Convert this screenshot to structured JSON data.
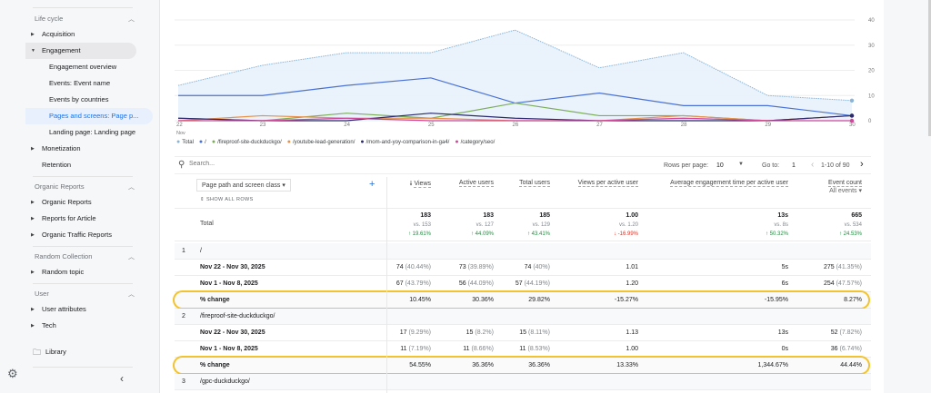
{
  "sidebar": {
    "sections": [
      {
        "title": "Life cycle"
      },
      {
        "title": "Organic Reports"
      },
      {
        "title": "Random Collection"
      },
      {
        "title": "User"
      }
    ],
    "items": [
      "Acquisition",
      "Engagement",
      "Engagement overview",
      "Events: Event name",
      "Events by countries",
      "Pages and screens: Page p...",
      "Landing page: Landing page",
      "Monetization",
      "Retention",
      "Organic Reports",
      "Reports for Article",
      "Organic Traffic Reports",
      "Random topic",
      "User attributes",
      "Tech"
    ],
    "library": "Library"
  },
  "chart_data": {
    "type": "line",
    "x": [
      "22",
      "23",
      "24",
      "25",
      "26",
      "27",
      "28",
      "29",
      "30"
    ],
    "x_sub_label": "Nov",
    "yticks": [
      "0",
      "10",
      "20",
      "30",
      "40"
    ],
    "ylim": [
      0,
      40
    ],
    "grid": true,
    "legend_position": "bottom",
    "series": [
      {
        "name": "Total",
        "color": "#8ab4d8",
        "values": [
          14,
          22,
          27,
          27,
          36,
          21,
          27,
          10,
          8
        ]
      },
      {
        "name": "/",
        "color": "#4a72d4",
        "values": [
          10,
          10,
          14,
          17,
          7,
          11,
          6,
          6,
          2
        ]
      },
      {
        "name": "/fireproof-site-duckduckgo/",
        "color": "#7cae5a",
        "values": [
          1,
          0,
          3,
          1,
          7,
          2,
          2,
          0,
          2
        ]
      },
      {
        "name": "/youtube-lead-generation/",
        "color": "#e8914a",
        "values": [
          0,
          2,
          1,
          1,
          0,
          0,
          2,
          0,
          2
        ]
      },
      {
        "name": "/mom-and-yoy-comparison-in-ga4/",
        "color": "#2b2a6e",
        "values": [
          1,
          0,
          0,
          3,
          1,
          0,
          0,
          0,
          2
        ]
      },
      {
        "name": "/category/seo/",
        "color": "#d0489a",
        "values": [
          0,
          0,
          1,
          0,
          0,
          0,
          1,
          0,
          0
        ]
      }
    ]
  },
  "toolbar": {
    "search_placeholder": "Search...",
    "rows_label": "Rows per page:",
    "rows_value": "10",
    "goto_label": "Go to:",
    "goto_value": "1",
    "range": "1-10 of 90"
  },
  "table": {
    "dimension": "Page path and screen class",
    "show_all": "SHOW ALL ROWS",
    "total_label": "Total",
    "event_filter": "All events",
    "columns": [
      "Views",
      "Active users",
      "Total users",
      "Views per active user",
      "Average engagement time per active user",
      "Event count"
    ],
    "totals": [
      {
        "v": "183",
        "vs": "vs. 153",
        "ch": "↑ 19.61%",
        "dir": "up"
      },
      {
        "v": "183",
        "vs": "vs. 127",
        "ch": "↑ 44.09%",
        "dir": "up"
      },
      {
        "v": "185",
        "vs": "vs. 129",
        "ch": "↑ 43.41%",
        "dir": "up"
      },
      {
        "v": "1.00",
        "vs": "vs. 1.20",
        "ch": "↓ -16.99%",
        "dir": "down"
      },
      {
        "v": "13s",
        "vs": "vs. 8s",
        "ch": "↑ 50.32%",
        "dir": "up"
      },
      {
        "v": "665",
        "vs": "vs. 534",
        "ch": "↑ 24.53%",
        "dir": "up"
      }
    ],
    "groups": [
      {
        "index": "1",
        "path": "/",
        "rows": [
          {
            "label": "Nov 22 - Nov 30, 2025",
            "cells": [
              [
                "74",
                "(40.44%)"
              ],
              [
                "73",
                "(39.89%)"
              ],
              [
                "74",
                "(40%)"
              ],
              [
                "1.01",
                ""
              ],
              [
                "5s",
                ""
              ],
              [
                "275",
                "(41.35%)"
              ]
            ]
          },
          {
            "label": "Nov 1 - Nov 8, 2025",
            "cells": [
              [
                "67",
                "(43.79%)"
              ],
              [
                "56",
                "(44.09%)"
              ],
              [
                "57",
                "(44.19%)"
              ],
              [
                "1.20",
                ""
              ],
              [
                "6s",
                ""
              ],
              [
                "254",
                "(47.57%)"
              ]
            ]
          },
          {
            "label": "% change",
            "cells": [
              [
                "10.45%",
                ""
              ],
              [
                "30.36%",
                ""
              ],
              [
                "29.82%",
                ""
              ],
              [
                "-15.27%",
                ""
              ],
              [
                "-15.95%",
                ""
              ],
              [
                "8.27%",
                ""
              ]
            ]
          }
        ]
      },
      {
        "index": "2",
        "path": "/fireproof-site-duckduckgo/",
        "rows": [
          {
            "label": "Nov 22 - Nov 30, 2025",
            "cells": [
              [
                "17",
                "(9.29%)"
              ],
              [
                "15",
                "(8.2%)"
              ],
              [
                "15",
                "(8.11%)"
              ],
              [
                "1.13",
                ""
              ],
              [
                "13s",
                ""
              ],
              [
                "52",
                "(7.82%)"
              ]
            ]
          },
          {
            "label": "Nov 1 - Nov 8, 2025",
            "cells": [
              [
                "11",
                "(7.19%)"
              ],
              [
                "11",
                "(8.66%)"
              ],
              [
                "11",
                "(8.53%)"
              ],
              [
                "1.00",
                ""
              ],
              [
                "0s",
                ""
              ],
              [
                "36",
                "(6.74%)"
              ]
            ]
          },
          {
            "label": "% change",
            "cells": [
              [
                "54.55%",
                ""
              ],
              [
                "36.36%",
                ""
              ],
              [
                "36.36%",
                ""
              ],
              [
                "13.33%",
                ""
              ],
              [
                "1,344.67%",
                ""
              ],
              [
                "44.44%",
                ""
              ]
            ]
          }
        ]
      },
      {
        "index": "3",
        "path": "/gpc-duckduckgo/",
        "rows": []
      }
    ]
  }
}
